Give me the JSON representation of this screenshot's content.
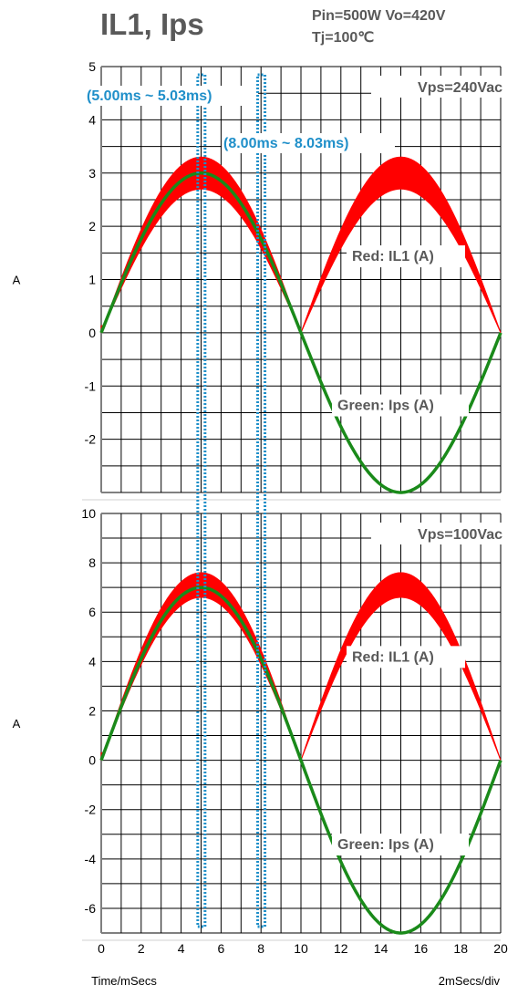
{
  "header": {
    "title": "IL1, Ips",
    "conditions_line1": "Pin=500W  Vo=420V",
    "conditions_line2": "Tj=100℃"
  },
  "colors": {
    "il1": "#ff0000",
    "ips": "#1a8a1a",
    "window": "#1f8fc9",
    "grid": "#000000"
  },
  "windows": [
    {
      "label": "(5.00ms ~ 5.03ms)",
      "start_ms": 5.0,
      "end_ms": 5.03
    },
    {
      "label": "(8.00ms ~ 8.03ms)",
      "start_ms": 8.0,
      "end_ms": 8.03
    }
  ],
  "chart_data": [
    {
      "type": "area",
      "condition": "Vps=240Vac",
      "ylabel": "A",
      "xlim": [
        0,
        20
      ],
      "ylim": [
        -3,
        5
      ],
      "yticks": [
        5,
        4,
        3,
        2,
        1,
        0,
        -1,
        -2
      ],
      "grid": true,
      "annotations": {
        "il1": "Red: IL1 (A)",
        "ips": "Green: Ips (A)"
      },
      "series": [
        {
          "name": "Red: IL1 (A)",
          "shape": "rectified sine envelope",
          "x": [
            0,
            2.5,
            5,
            7.5,
            10,
            12.5,
            15,
            17.5,
            20
          ],
          "upper": [
            0.3,
            2.35,
            3.3,
            2.35,
            0,
            2.35,
            3.3,
            2.35,
            0
          ],
          "lower": [
            0,
            1.9,
            2.7,
            1.9,
            0,
            1.9,
            2.7,
            1.9,
            0
          ]
        },
        {
          "name": "Green: Ips (A)",
          "shape": "sine",
          "x": [
            0,
            2.5,
            5,
            7.5,
            10,
            12.5,
            15,
            17.5,
            20
          ],
          "values": [
            0,
            2.1,
            3.0,
            2.1,
            0,
            -2.1,
            -3.0,
            -2.1,
            0
          ]
        }
      ]
    },
    {
      "type": "area",
      "condition": "Vps=100Vac",
      "ylabel": "A",
      "xlabel": "Time/mSecs",
      "xscale": "2mSecs/div",
      "xlim": [
        0,
        20
      ],
      "ylim": [
        -7,
        10
      ],
      "xticks": [
        0,
        2,
        4,
        6,
        8,
        10,
        12,
        14,
        16,
        18,
        20
      ],
      "yticks": [
        10,
        8,
        6,
        4,
        2,
        0,
        -2,
        -4,
        -6
      ],
      "grid": true,
      "annotations": {
        "il1": "Red: IL1 (A)",
        "ips": "Green: Ips (A)"
      },
      "series": [
        {
          "name": "Red: IL1 (A)",
          "shape": "rectified sine envelope",
          "x": [
            0,
            2.5,
            5,
            7.5,
            10,
            12.5,
            15,
            17.5,
            20
          ],
          "upper": [
            0.3,
            5.4,
            7.6,
            5.4,
            0,
            5.4,
            7.6,
            5.4,
            0
          ],
          "lower": [
            0,
            4.7,
            6.6,
            4.7,
            0,
            4.7,
            6.6,
            4.7,
            0
          ]
        },
        {
          "name": "Green: Ips (A)",
          "shape": "sine",
          "x": [
            0,
            2.5,
            5,
            7.5,
            10,
            12.5,
            15,
            17.5,
            20
          ],
          "values": [
            0,
            4.95,
            7.0,
            4.95,
            0,
            -4.95,
            -7.0,
            -4.95,
            0
          ]
        }
      ]
    }
  ]
}
